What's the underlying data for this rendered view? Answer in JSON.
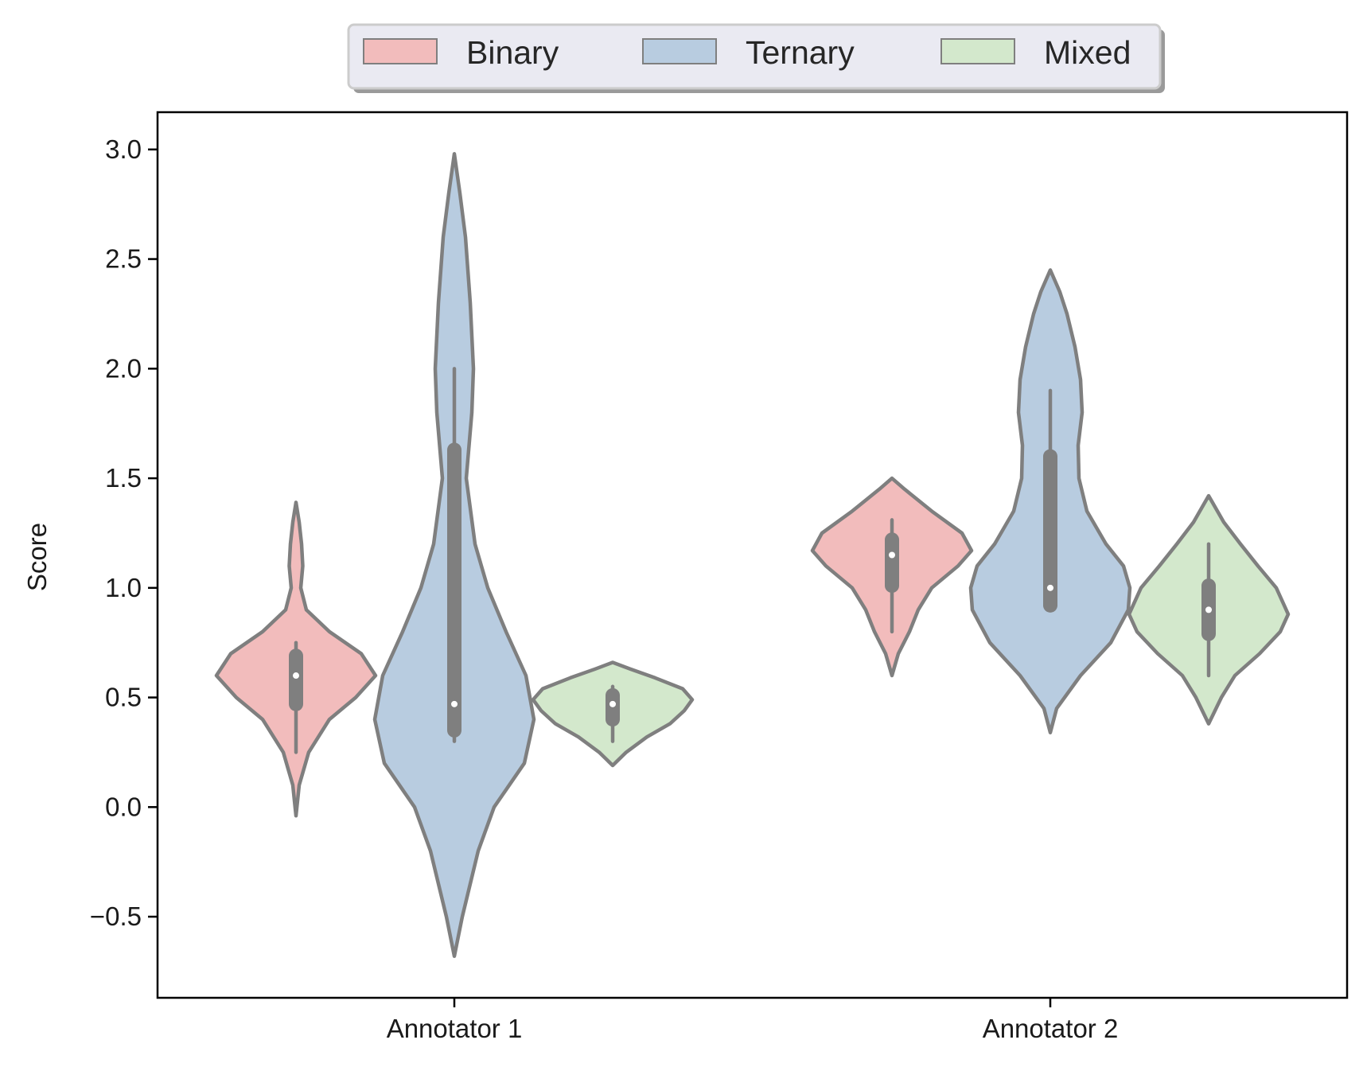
{
  "chart_data": {
    "type": "violin",
    "ylabel": "Score",
    "xlabel": "",
    "ylim": [
      -0.87,
      3.17
    ],
    "yticks": [
      -0.5,
      0.0,
      0.5,
      1.0,
      1.5,
      2.0,
      2.5,
      3.0
    ],
    "ytick_labels": [
      "−0.5",
      "0.0",
      "0.5",
      "1.0",
      "1.5",
      "2.0",
      "2.5",
      "3.0"
    ],
    "categories": [
      "Annotator 1",
      "Annotator 2"
    ],
    "grid": false,
    "legend": {
      "placement": "top-center"
    },
    "series": [
      {
        "name": "Binary",
        "color": "#f2bcbc",
        "violins": [
          {
            "min": -0.04,
            "max": 1.39,
            "q1": 0.47,
            "median": 0.6,
            "q3": 0.69,
            "whisker_low": 0.25,
            "whisker_high": 0.75,
            "profile": [
              [
                -0.04,
                0.0
              ],
              [
                0.1,
                0.04
              ],
              [
                0.25,
                0.16
              ],
              [
                0.4,
                0.42
              ],
              [
                0.5,
                0.75
              ],
              [
                0.6,
                1.0
              ],
              [
                0.7,
                0.82
              ],
              [
                0.8,
                0.42
              ],
              [
                0.9,
                0.13
              ],
              [
                1.0,
                0.06
              ],
              [
                1.1,
                0.085
              ],
              [
                1.2,
                0.07
              ],
              [
                1.3,
                0.04
              ],
              [
                1.39,
                0.0
              ]
            ]
          },
          {
            "min": 0.6,
            "max": 1.5,
            "q1": 1.01,
            "median": 1.15,
            "q3": 1.22,
            "whisker_low": 0.8,
            "whisker_high": 1.31,
            "profile": [
              [
                0.6,
                0.0
              ],
              [
                0.7,
                0.08
              ],
              [
                0.8,
                0.22
              ],
              [
                0.9,
                0.33
              ],
              [
                1.0,
                0.5
              ],
              [
                1.1,
                0.83
              ],
              [
                1.17,
                1.0
              ],
              [
                1.25,
                0.88
              ],
              [
                1.35,
                0.5
              ],
              [
                1.45,
                0.16
              ],
              [
                1.5,
                0.0
              ]
            ]
          }
        ]
      },
      {
        "name": "Ternary",
        "color": "#b8cce0",
        "violins": [
          {
            "min": -0.68,
            "max": 2.98,
            "q1": 0.35,
            "median": 0.47,
            "q3": 1.63,
            "whisker_low": 0.3,
            "whisker_high": 2.0,
            "profile": [
              [
                -0.68,
                0.0
              ],
              [
                -0.5,
                0.1
              ],
              [
                -0.2,
                0.3
              ],
              [
                0.0,
                0.5
              ],
              [
                0.2,
                0.88
              ],
              [
                0.4,
                1.0
              ],
              [
                0.6,
                0.9
              ],
              [
                0.8,
                0.65
              ],
              [
                1.0,
                0.42
              ],
              [
                1.2,
                0.26
              ],
              [
                1.5,
                0.15
              ],
              [
                1.8,
                0.22
              ],
              [
                2.0,
                0.24
              ],
              [
                2.3,
                0.2
              ],
              [
                2.6,
                0.14
              ],
              [
                2.8,
                0.07
              ],
              [
                2.98,
                0.0
              ]
            ]
          },
          {
            "min": 0.34,
            "max": 2.45,
            "q1": 0.92,
            "median": 1.0,
            "q3": 1.6,
            "whisker_low": 0.91,
            "whisker_high": 1.9,
            "profile": [
              [
                0.34,
                0.0
              ],
              [
                0.45,
                0.08
              ],
              [
                0.6,
                0.38
              ],
              [
                0.75,
                0.76
              ],
              [
                0.9,
                0.98
              ],
              [
                1.0,
                1.0
              ],
              [
                1.1,
                0.92
              ],
              [
                1.2,
                0.7
              ],
              [
                1.35,
                0.46
              ],
              [
                1.5,
                0.36
              ],
              [
                1.65,
                0.35
              ],
              [
                1.8,
                0.4
              ],
              [
                1.95,
                0.38
              ],
              [
                2.1,
                0.31
              ],
              [
                2.25,
                0.21
              ],
              [
                2.35,
                0.12
              ],
              [
                2.45,
                0.0
              ]
            ]
          }
        ]
      },
      {
        "name": "Mixed",
        "color": "#d3e8cc",
        "violins": [
          {
            "min": 0.19,
            "max": 0.66,
            "q1": 0.4,
            "median": 0.47,
            "q3": 0.51,
            "whisker_low": 0.3,
            "whisker_high": 0.55,
            "profile": [
              [
                0.19,
                0.0
              ],
              [
                0.25,
                0.17
              ],
              [
                0.32,
                0.43
              ],
              [
                0.38,
                0.72
              ],
              [
                0.44,
                0.9
              ],
              [
                0.49,
                1.0
              ],
              [
                0.54,
                0.88
              ],
              [
                0.59,
                0.53
              ],
              [
                0.63,
                0.22
              ],
              [
                0.66,
                0.0
              ]
            ]
          },
          {
            "min": 0.38,
            "max": 1.42,
            "q1": 0.79,
            "median": 0.9,
            "q3": 1.01,
            "whisker_low": 0.6,
            "whisker_high": 1.2,
            "profile": [
              [
                0.38,
                0.0
              ],
              [
                0.5,
                0.16
              ],
              [
                0.6,
                0.33
              ],
              [
                0.7,
                0.64
              ],
              [
                0.8,
                0.9
              ],
              [
                0.88,
                1.0
              ],
              [
                1.0,
                0.85
              ],
              [
                1.1,
                0.62
              ],
              [
                1.2,
                0.4
              ],
              [
                1.3,
                0.19
              ],
              [
                1.42,
                0.0
              ]
            ]
          }
        ]
      }
    ]
  }
}
